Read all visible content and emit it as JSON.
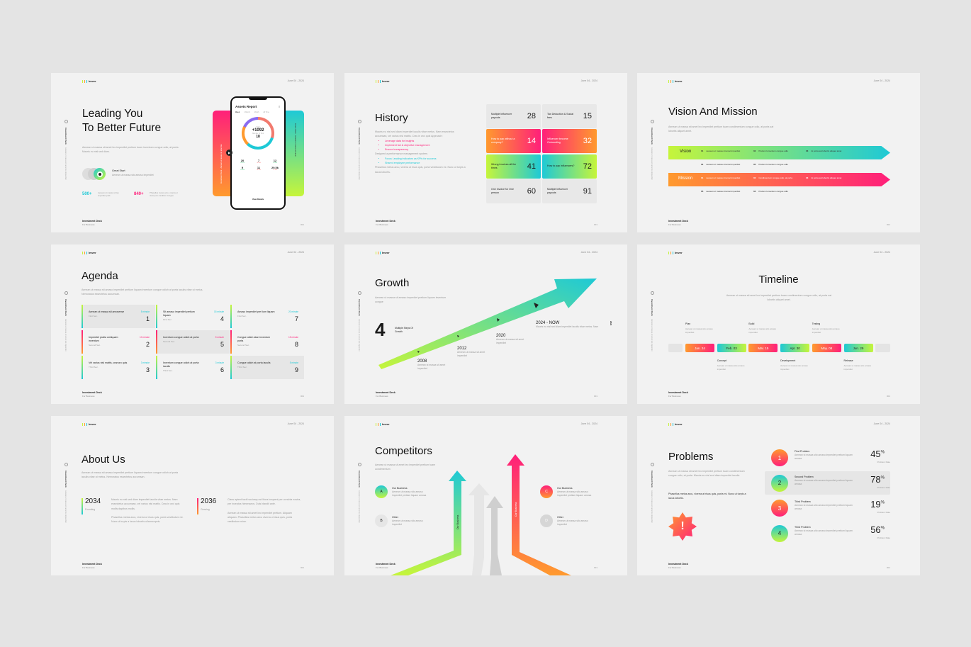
{
  "common": {
    "logo": "Imver",
    "date": "June 04 - 2024",
    "footer_title": "Investment Deck",
    "footer_sub": "For Business",
    "side_label": "Investment Deck",
    "side_sub": "Aenean ut massa sit amet leo imperdiet",
    "page": "001"
  },
  "colors": {
    "pink": "#ff1f7a",
    "orange": "#ff9a2e",
    "cyan": "#1ec9d6",
    "lime": "#c6f53a",
    "slide_bg": "#f2f2f2",
    "page_bg": "#e4e4e4"
  },
  "cover": {
    "title_1": "Leading You",
    "title_2": "To Better Future",
    "para": "Aenean ut massa sit amet leo imperdiet pretium tuam inventum congue odio, at porta. Mauris eu nisl sed diam.",
    "great_start": "Great Start",
    "great_start_sub": "Aenean ut massa sito amaso imperdiet",
    "stat1": "500+",
    "stat1_desc": "Aenean ut massa sit leo imperdiet pelit",
    "stat2": "840+",
    "stat2_desc": "Phasellus metus arcu, viverra ut risus quis conditum congue",
    "left_card_text": "Investment Deck · Aenean ut massa sit amet leo",
    "right_card_text": "Future Plans · Aenean ut massa sit amet",
    "phone": {
      "title": "Assets Report",
      "tabs": [
        "Week",
        "1 Month",
        "Month",
        "All Time"
      ],
      "total_label": "Total",
      "total": "+1092",
      "num_label": "Number of Tour",
      "num": "18",
      "stats": [
        {
          "v": "20",
          "d": "+5.1%"
        },
        {
          "v": "7",
          "d": "-2.4%"
        },
        {
          "v": "12",
          "d": "+3.2%"
        },
        {
          "v": "9",
          "d": "+1.8%"
        },
        {
          "v": "11",
          "d": "-0.6%"
        },
        {
          "v": "29.5k",
          "d": "-1.2%"
        }
      ],
      "button": "View Details"
    }
  },
  "history": {
    "title": "History",
    "para1": "Mauris eu nisl sed diam imperdiet iaculis vitae metus. Nam essectetus accumsan, vel varius nisl mattis. Cras in orci quis Approach:",
    "bullets_pink": [
      "Leverage data for insights",
      "Implement fair & objective management",
      "Ensure transparency"
    ],
    "para2": "Designed a performance management system.",
    "bullets_cyan": [
      "Focus Leading indicators as KPIs for success",
      "Shared employee performance"
    ],
    "para3": "Phasellus metus arcu, viverra ut risus quis, porta vestibulum mi. Nunc ut turpis a lacus lobortis.",
    "cards": [
      {
        "label": "Multiple Influencer payouts",
        "value": "28"
      },
      {
        "label": "Tax Deduction & Social fees",
        "value": "15"
      },
      {
        "label": "How to pay without a company?",
        "value": "14"
      },
      {
        "label": "Influencer become Onboarding",
        "value": "32"
      },
      {
        "label": "Wrong invoices all the times",
        "value": "41"
      },
      {
        "label": "How to pay influencers?",
        "value": "72"
      },
      {
        "label": "One invoice for One person",
        "value": "60"
      },
      {
        "label": "Multiple Influencer payouts",
        "value": "91"
      }
    ]
  },
  "vision": {
    "title": "Vision And Mission",
    "para": "Aenean ut massa sit amet leo imperdiet pretium tuam condimentum congue odio, at porta sat lobortis aliquet amet.",
    "vision_label": "Vision",
    "mission_label": "Mission",
    "vision_items": [
      {
        "n": "01",
        "t": "Aenean ut massa sit amet imperdiet"
      },
      {
        "n": "02",
        "t": "Pretium lumentum congue odio"
      },
      {
        "n": "03",
        "t": "At porta sat lobortis aliquet amet"
      },
      {
        "n": "04",
        "t": "Aenean ut massa sit amet imperdiet"
      },
      {
        "n": "05",
        "t": "Pretium lumentum congue odio"
      }
    ],
    "mission_items": [
      {
        "n": "01",
        "t": "Aenean ut massa sit amet imperdiet"
      },
      {
        "n": "02",
        "t": "Condimentum congue odio, at porta"
      },
      {
        "n": "03",
        "t": "At porta sat lobortis aliquet amet"
      },
      {
        "n": "05",
        "t": "Aenean ut massa sit amet imperdiet"
      },
      {
        "n": "04",
        "t": "Pretium lumentum congue odio"
      }
    ]
  },
  "agenda": {
    "title": "Agenda",
    "para": "Aenean ut massa sit amaso imperdiet pretium liquam inventum congue odioh at porta iaculis vitae ut metus. Nemoratus essectetus accumsan.",
    "items": [
      {
        "t": "Aenean ut massa sit amosense",
        "s": "First Sec.",
        "m": "5 minute",
        "n": "1"
      },
      {
        "t": "Imperdiet pratia umliquam inventum",
        "s": "Second Sec.",
        "m": "10 minute",
        "n": "2"
      },
      {
        "t": "Vel varius nisl mattis, cranoro quis",
        "s": "Third Sec.",
        "m": "3 minute",
        "n": "3"
      },
      {
        "t": "Sit amaso imperdiet pretium liquam",
        "s": "First Sec.",
        "m": "15 minute",
        "n": "4"
      },
      {
        "t": "Inventum congue odioh at porta",
        "s": "Second Sec.",
        "m": "5 minute",
        "n": "5"
      },
      {
        "t": "Inventum congue odioh at porta iaculis",
        "s": "Third Sec.",
        "m": "3 minute",
        "n": "6"
      },
      {
        "t": "Amaso imperdiet pre tium liquam",
        "s": "First Sec.",
        "m": "20 minute",
        "n": "7"
      },
      {
        "t": "Congue odioh atan inventum porta",
        "s": "Second Sec.",
        "m": "15 minute",
        "n": "8"
      },
      {
        "t": "Congue odioh at porta iaculis",
        "s": "Third Sec.",
        "m": "5 minute",
        "n": "9"
      }
    ]
  },
  "growth": {
    "title": "Growth",
    "para": "Aenean ut massa sit amaso imperdiet pretium liquam inventum congue",
    "big": "4",
    "big_label": "Multiple Steps Of Growth",
    "side_tag": "2024",
    "steps": [
      {
        "year": "2008",
        "t": "Aenean ut massa sit amet imperdiet"
      },
      {
        "year": "2012",
        "t": "Aenean ut massa sit amet imperdiet"
      },
      {
        "year": "2020",
        "t": "Aenean ut massa sit amet imperdiet"
      },
      {
        "year": "2024 - NOW",
        "t": "Mauris eu nisl sed diam imperdiet iaculis vitae metus. Nam"
      }
    ]
  },
  "timeline": {
    "title": "Timeline",
    "para": "Aenean ut massa sit amet leo imperdiet pretium tuam condimentum congue odio, at porta sat lobortis aliquet amet.",
    "dates": [
      "Jan. 24",
      "Feb. 03",
      "Mar. 15",
      "Apr. 30",
      "May. 08",
      "Jun. 29"
    ],
    "phases": [
      {
        "name": "Plan",
        "t": "Aenean ut massa sito amaso imperdiet"
      },
      {
        "name": "Concept",
        "t": "Aenean ut massa sito amaso imperdiet"
      },
      {
        "name": "Build",
        "t": "Aenean ut massa sito amaso imperdiet"
      },
      {
        "name": "Development",
        "t": "Aenean ut massa sito amaso imperdiet"
      },
      {
        "name": "Testing",
        "t": "Aenean ut massa sito amaso imperdiet"
      },
      {
        "name": "Release",
        "t": "Aenean ut massa sito amaso imperdiet"
      }
    ]
  },
  "about": {
    "title": "About Us",
    "para": "Aenean ut massa sit amaso imperdiet pretium liquam inventum congue odioh at porta iaculis vitae ut metus. Nemoratus essectetus accumsan.",
    "items": [
      {
        "year": "2034",
        "label": "Founding",
        "p1": "Mauris eu nisl sed diam imperdiet iaculis vitae metus. Nam essectetus accumsan, vel varius nisl mattis. Cras in orci quis mollis dapibus mollis.",
        "p2": "Phasellus metus arcu, viverra ut risus quis, porta vestibulum mi. Nunc ut turpis a lacus lobortis ullamcorpeis."
      },
      {
        "year": "2036",
        "label": "Growing",
        "p1": "Class aptent taciti sociosqu ad litora torquent per conubia nostra, per inceptos himenaeos. Duis blandit ante.",
        "p2": "Aenean ut massa sit amet leo imperdiet pretium. Aliquam aliquam. Phasellus metus arcu viverra ut risus quis, porta vestibulum mine."
      }
    ]
  },
  "competitors": {
    "title": "Competitors",
    "para": "Aenean ut massa sit amet leo imperdiet pretium tuam condimentum",
    "arrow_label": "Our Business",
    "items": [
      {
        "letter": "A",
        "name": "Our Business",
        "t": "Aenean ut massa sito amaso imperdiet pretium liquam amosa"
      },
      {
        "letter": "B",
        "name": "Other",
        "t": "Aenean ut massa sito amaso imperdiet"
      },
      {
        "letter": "C",
        "name": "Our Business",
        "t": "Aenean ut massa sito amaso imperdiet pretium liquam amosa"
      },
      {
        "letter": "D",
        "name": "Other",
        "t": "Aenean ut massa sito amaso imperdiet"
      }
    ]
  },
  "problems": {
    "title": "Problems",
    "para": "Aenean ut massa sit amet leo imperdiet pretium tuam condimentum congue odio, at porta. Mauris eu nisl sed diam imperdiet iaculis.",
    "para_bold": "Phasellus metus arcu, viverra at risus quis, porta mi. Nunc ut turpis a lacus lobortis.",
    "rate_label": "Problem Rate",
    "items": [
      {
        "n": "1",
        "name": "First Problem",
        "t": "Aenean ut massa sito amaso imperdiet pretium liquam amosa",
        "pct": "45"
      },
      {
        "n": "2",
        "name": "Second Problem",
        "t": "Aenean ut massa sito amaso imperdiet pretium liquam amosa",
        "pct": "78"
      },
      {
        "n": "3",
        "name": "Third Problem",
        "t": "Aenean ut massa sito amaso imperdiet pretium liquam amosa",
        "pct": "19"
      },
      {
        "n": "4",
        "name": "Third Problem",
        "t": "Aenean ut massa sito amaso imperdiet pretium liquam amosa",
        "pct": "56"
      }
    ]
  }
}
